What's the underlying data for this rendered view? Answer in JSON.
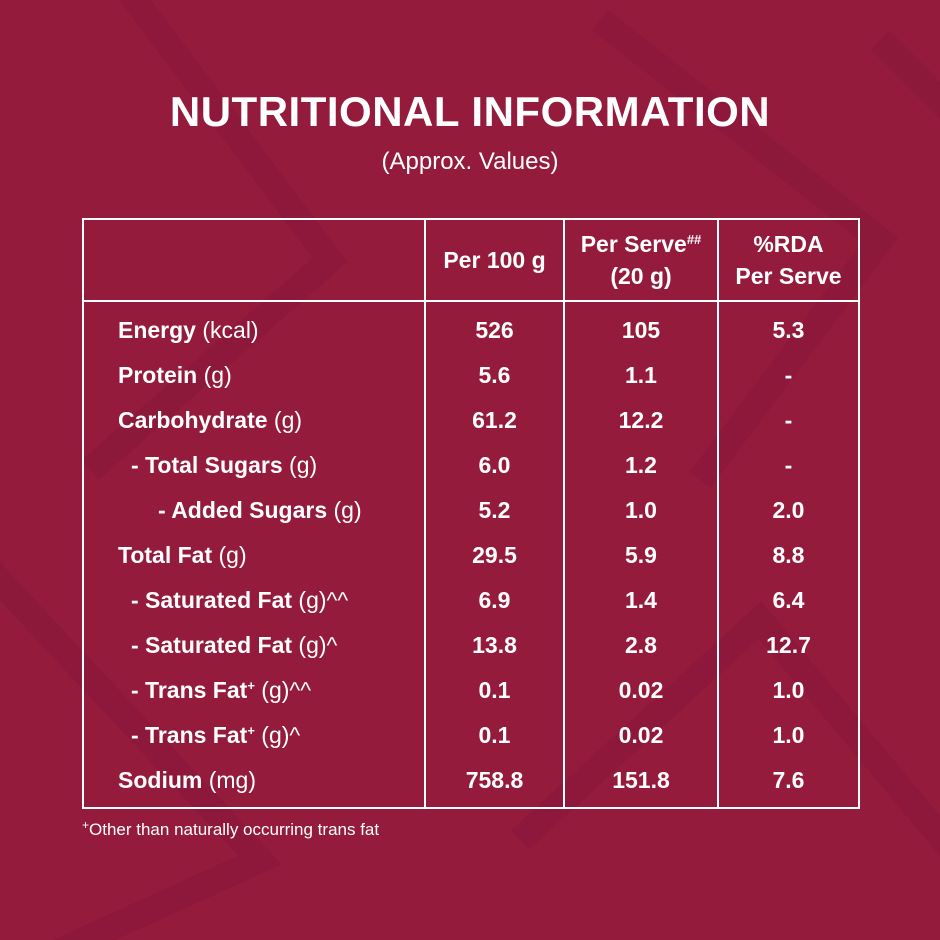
{
  "title": "NUTRITIONAL INFORMATION",
  "subtitle": "(Approx. Values)",
  "colors": {
    "background": "#951b3c",
    "text": "#ffffff",
    "border": "#ffffff"
  },
  "table": {
    "headers": {
      "per100": "Per 100 g",
      "perServe": "Per Serve",
      "perServe_mark": "##",
      "perServe_sub": "(20 g)",
      "rda_line1": "%RDA",
      "rda_line2": "Per Serve"
    },
    "rows": [
      {
        "name": "Energy",
        "unit": " (kcal)",
        "per100": "526",
        "perServe": "105",
        "rda": "5.3"
      },
      {
        "name": "Protein",
        "unit": " (g)",
        "per100": "5.6",
        "perServe": "1.1",
        "rda": "-"
      },
      {
        "name": "Carbohydrate",
        "unit": " (g)",
        "per100": "61.2",
        "perServe": "12.2",
        "rda": "-"
      },
      {
        "name": "- Total Sugars",
        "unit": " (g)",
        "per100": "6.0",
        "perServe": "1.2",
        "rda": "-"
      },
      {
        "name": "- Added Sugars",
        "unit": " (g)",
        "per100": "5.2",
        "perServe": "1.0",
        "rda": "2.0"
      },
      {
        "name": "Total Fat",
        "unit": " (g)",
        "per100": "29.5",
        "perServe": "5.9",
        "rda": "8.8"
      },
      {
        "name": "- Saturated Fat",
        "unit": " (g)^^",
        "per100": "6.9",
        "perServe": "1.4",
        "rda": "6.4"
      },
      {
        "name": "- Saturated Fat",
        "unit": " (g)^",
        "per100": "13.8",
        "perServe": "2.8",
        "rda": "12.7"
      },
      {
        "name": "- Trans Fat",
        "mark": "+",
        "unit": " (g)^^",
        "per100": "0.1",
        "perServe": "0.02",
        "rda": "1.0"
      },
      {
        "name": "- Trans Fat",
        "mark": "+",
        "unit": " (g)^",
        "per100": "0.1",
        "perServe": "0.02",
        "rda": "1.0"
      },
      {
        "name": "Sodium",
        "unit": " (mg)",
        "per100": "758.8",
        "perServe": "151.8",
        "rda": "7.6"
      }
    ]
  },
  "footnote": {
    "mark": "+",
    "text": "Other than naturally occurring trans fat"
  }
}
